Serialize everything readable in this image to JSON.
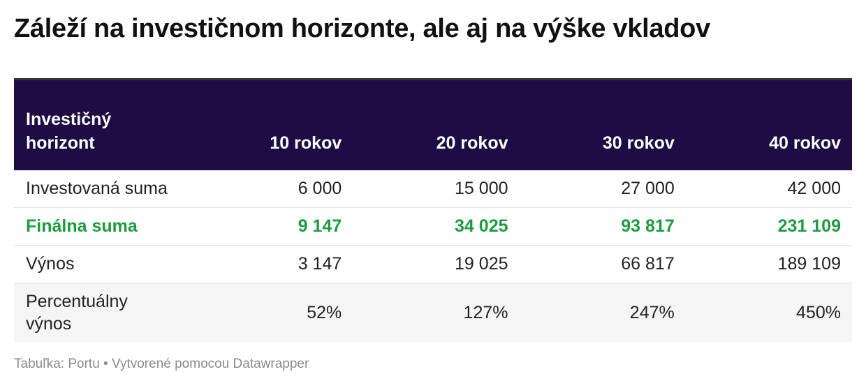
{
  "header": {
    "title": "Záleží na investičnom horizonte, ale aj na výške vkladov"
  },
  "table": {
    "columns": [
      "Investičný horizont",
      "10 rokov",
      "20 rokov",
      "30 rokov",
      "40 rokov"
    ],
    "rows": [
      [
        "Investovaná suma",
        "6 000",
        "15 000",
        "27 000",
        "42 000"
      ],
      [
        "Finálna suma",
        "9 147",
        "34 025",
        "93 817",
        "231 109"
      ],
      [
        "Výnos",
        "3 147",
        "19 025",
        "66 817",
        "189 109"
      ],
      [
        "Percentuálny výnos",
        "52%",
        "127%",
        "247%",
        "450%"
      ]
    ]
  },
  "footer": {
    "source": "Tabuľka: Portu • Vytvorené pomocou Datawrapper"
  }
}
